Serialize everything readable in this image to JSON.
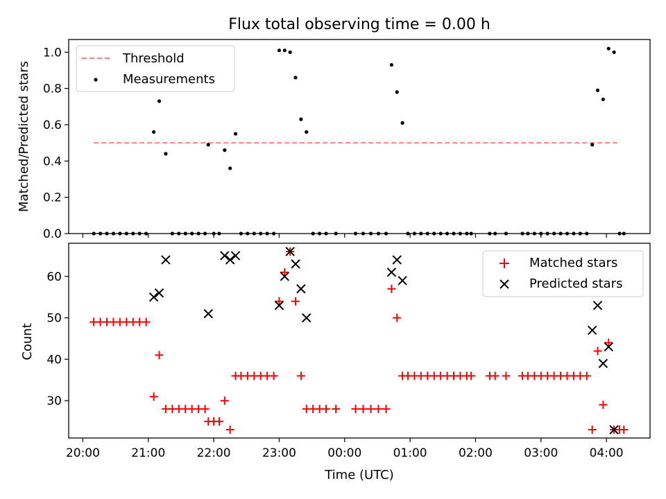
{
  "figure": {
    "title": "Flux total observing time = 0.00 h",
    "xlabel": "Time (UTC)"
  },
  "colors": {
    "threshold": "#ff7f7f",
    "measurements": "#000000",
    "matched": "#ff0000",
    "predicted": "#000000"
  },
  "chart_data": [
    {
      "type": "scatter",
      "ylabel": "Matched/Predicted stars",
      "xlim": [
        "19:47",
        "04:40"
      ],
      "ylim": [
        0,
        1.07
      ],
      "yticks": [
        0.0,
        0.2,
        0.4,
        0.6,
        0.8,
        1.0
      ],
      "ytick_labels": [
        "0.0",
        "0.2",
        "0.4",
        "0.6",
        "0.8",
        "1.0"
      ],
      "legend": {
        "position": "top-left",
        "entries": [
          "Threshold",
          "Measurements"
        ]
      },
      "threshold": {
        "name": "Threshold",
        "value": 0.5,
        "x": [
          "20:10",
          "04:10"
        ]
      },
      "series": [
        {
          "name": "Measurements",
          "marker": "dot",
          "points": [
            [
              "20:10",
              0
            ],
            [
              "20:16",
              0
            ],
            [
              "20:22",
              0
            ],
            [
              "20:28",
              0
            ],
            [
              "20:34",
              0
            ],
            [
              "20:40",
              0
            ],
            [
              "20:46",
              0
            ],
            [
              "20:52",
              0
            ],
            [
              "20:58",
              0
            ],
            [
              "21:05",
              0.56
            ],
            [
              "21:10",
              0.73
            ],
            [
              "21:16",
              0.44
            ],
            [
              "21:22",
              0
            ],
            [
              "21:28",
              0
            ],
            [
              "21:34",
              0
            ],
            [
              "21:40",
              0
            ],
            [
              "21:46",
              0
            ],
            [
              "21:52",
              0
            ],
            [
              "21:55",
              0.49
            ],
            [
              "22:00",
              0
            ],
            [
              "22:05",
              0
            ],
            [
              "22:10",
              0.46
            ],
            [
              "22:15",
              0.36
            ],
            [
              "22:20",
              0.55
            ],
            [
              "22:25",
              0
            ],
            [
              "22:31",
              0
            ],
            [
              "22:37",
              0
            ],
            [
              "22:43",
              0
            ],
            [
              "22:49",
              0
            ],
            [
              "22:55",
              0
            ],
            [
              "23:00",
              1.01
            ],
            [
              "23:05",
              1.01
            ],
            [
              "23:10",
              1.0
            ],
            [
              "23:15",
              0.86
            ],
            [
              "23:20",
              0.63
            ],
            [
              "23:25",
              0.56
            ],
            [
              "23:31",
              0
            ],
            [
              "23:37",
              0
            ],
            [
              "23:43",
              0
            ],
            [
              "23:52",
              0
            ],
            [
              "00:10",
              0
            ],
            [
              "00:17",
              0
            ],
            [
              "00:24",
              0
            ],
            [
              "00:31",
              0
            ],
            [
              "00:38",
              0
            ],
            [
              "00:43",
              0.93
            ],
            [
              "00:48",
              0.78
            ],
            [
              "00:53",
              0.61
            ],
            [
              "00:58",
              0
            ],
            [
              "01:04",
              0
            ],
            [
              "01:10",
              0
            ],
            [
              "01:16",
              0
            ],
            [
              "01:22",
              0
            ],
            [
              "01:28",
              0
            ],
            [
              "01:34",
              0
            ],
            [
              "01:40",
              0
            ],
            [
              "01:46",
              0
            ],
            [
              "01:52",
              0
            ],
            [
              "01:56",
              0
            ],
            [
              "02:13",
              0
            ],
            [
              "02:18",
              0
            ],
            [
              "02:28",
              0
            ],
            [
              "02:43",
              0
            ],
            [
              "02:48",
              0
            ],
            [
              "02:54",
              0
            ],
            [
              "03:00",
              0
            ],
            [
              "03:06",
              0
            ],
            [
              "03:12",
              0
            ],
            [
              "03:18",
              0
            ],
            [
              "03:24",
              0
            ],
            [
              "03:30",
              0
            ],
            [
              "03:36",
              0
            ],
            [
              "03:42",
              0
            ],
            [
              "03:47",
              0.49
            ],
            [
              "03:52",
              0.79
            ],
            [
              "03:57",
              0.74
            ],
            [
              "04:02",
              1.02
            ],
            [
              "04:07",
              1.0
            ],
            [
              "04:12",
              0
            ],
            [
              "04:16",
              0
            ]
          ]
        }
      ]
    },
    {
      "type": "scatter",
      "ylabel": "Count",
      "ylim": [
        21,
        68
      ],
      "yticks": [
        30,
        40,
        50,
        60
      ],
      "ytick_labels": [
        "30",
        "40",
        "50",
        "60"
      ],
      "xticks": [
        "20:00",
        "21:00",
        "22:00",
        "23:00",
        "00:00",
        "01:00",
        "02:00",
        "03:00",
        "04:00"
      ],
      "legend": {
        "position": "top-right",
        "entries": [
          "Matched stars",
          "Predicted stars"
        ]
      },
      "series": [
        {
          "name": "Matched stars",
          "marker": "plus",
          "points": [
            [
              "20:10",
              49
            ],
            [
              "20:16",
              49
            ],
            [
              "20:22",
              49
            ],
            [
              "20:28",
              49
            ],
            [
              "20:34",
              49
            ],
            [
              "20:40",
              49
            ],
            [
              "20:46",
              49
            ],
            [
              "20:52",
              49
            ],
            [
              "20:58",
              49
            ],
            [
              "21:05",
              31
            ],
            [
              "21:10",
              41
            ],
            [
              "21:16",
              28
            ],
            [
              "21:22",
              28
            ],
            [
              "21:28",
              28
            ],
            [
              "21:34",
              28
            ],
            [
              "21:40",
              28
            ],
            [
              "21:46",
              28
            ],
            [
              "21:52",
              28
            ],
            [
              "21:55",
              25
            ],
            [
              "22:00",
              25
            ],
            [
              "22:05",
              25
            ],
            [
              "22:10",
              30
            ],
            [
              "22:15",
              23
            ],
            [
              "22:20",
              36
            ],
            [
              "22:25",
              36
            ],
            [
              "22:31",
              36
            ],
            [
              "22:37",
              36
            ],
            [
              "22:43",
              36
            ],
            [
              "22:49",
              36
            ],
            [
              "22:55",
              36
            ],
            [
              "23:00",
              54
            ],
            [
              "23:05",
              61
            ],
            [
              "23:10",
              66
            ],
            [
              "23:15",
              54
            ],
            [
              "23:20",
              36
            ],
            [
              "23:25",
              28
            ],
            [
              "23:31",
              28
            ],
            [
              "23:37",
              28
            ],
            [
              "23:43",
              28
            ],
            [
              "23:52",
              28
            ],
            [
              "00:10",
              28
            ],
            [
              "00:17",
              28
            ],
            [
              "00:24",
              28
            ],
            [
              "00:31",
              28
            ],
            [
              "00:38",
              28
            ],
            [
              "00:43",
              57
            ],
            [
              "00:48",
              50
            ],
            [
              "00:53",
              36
            ],
            [
              "00:58",
              36
            ],
            [
              "01:04",
              36
            ],
            [
              "01:10",
              36
            ],
            [
              "01:16",
              36
            ],
            [
              "01:22",
              36
            ],
            [
              "01:28",
              36
            ],
            [
              "01:34",
              36
            ],
            [
              "01:40",
              36
            ],
            [
              "01:46",
              36
            ],
            [
              "01:52",
              36
            ],
            [
              "01:56",
              36
            ],
            [
              "02:13",
              36
            ],
            [
              "02:18",
              36
            ],
            [
              "02:28",
              36
            ],
            [
              "02:43",
              36
            ],
            [
              "02:48",
              36
            ],
            [
              "02:54",
              36
            ],
            [
              "03:00",
              36
            ],
            [
              "03:06",
              36
            ],
            [
              "03:12",
              36
            ],
            [
              "03:18",
              36
            ],
            [
              "03:24",
              36
            ],
            [
              "03:30",
              36
            ],
            [
              "03:36",
              36
            ],
            [
              "03:42",
              36
            ],
            [
              "03:47",
              23
            ],
            [
              "03:52",
              42
            ],
            [
              "03:57",
              29
            ],
            [
              "04:02",
              44
            ],
            [
              "04:07",
              23
            ],
            [
              "04:12",
              23
            ],
            [
              "04:16",
              23
            ]
          ]
        },
        {
          "name": "Predicted stars",
          "marker": "x",
          "points": [
            [
              "21:05",
              55
            ],
            [
              "21:10",
              56
            ],
            [
              "21:16",
              64
            ],
            [
              "21:55",
              51
            ],
            [
              "22:10",
              65
            ],
            [
              "22:15",
              64
            ],
            [
              "22:20",
              65
            ],
            [
              "23:00",
              53
            ],
            [
              "23:05",
              60
            ],
            [
              "23:10",
              66
            ],
            [
              "23:15",
              63
            ],
            [
              "23:20",
              57
            ],
            [
              "23:25",
              50
            ],
            [
              "00:43",
              61
            ],
            [
              "00:48",
              64
            ],
            [
              "00:53",
              59
            ],
            [
              "03:47",
              47
            ],
            [
              "03:52",
              53
            ],
            [
              "03:57",
              39
            ],
            [
              "04:02",
              43
            ],
            [
              "04:07",
              23
            ]
          ]
        }
      ]
    }
  ]
}
